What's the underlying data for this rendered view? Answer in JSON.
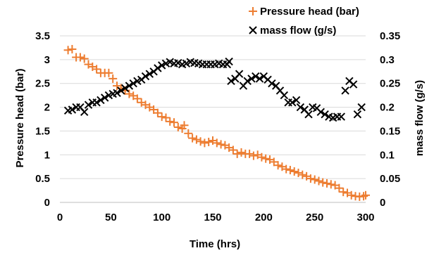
{
  "chart_data": {
    "type": "scatter",
    "xlabel": "Time (hrs)",
    "ylabel_left": "Pressure head (bar)",
    "ylabel_right": "mass flow (g/s)",
    "xlim": [
      0,
      300
    ],
    "ylim_left": [
      0,
      3.5
    ],
    "ylim_right": [
      0,
      0.35
    ],
    "x_ticks": [
      "0",
      "50",
      "100",
      "150",
      "200",
      "250",
      "300"
    ],
    "y_left_ticks": [
      "0",
      "0.5",
      "1",
      "1.5",
      "2",
      "2.5",
      "3",
      "3.5"
    ],
    "y_right_ticks": [
      "0",
      "0.05",
      "0.1",
      "0.15",
      "0.2",
      "0.25",
      "0.3",
      "0.35"
    ],
    "grid": true,
    "legend_position": "top-right",
    "series": [
      {
        "name": "Pressure head (bar)",
        "marker": "+",
        "color": "#ED7D31",
        "axis": "left",
        "points": [
          [
            8,
            3.2
          ],
          [
            12,
            3.22
          ],
          [
            16,
            3.05
          ],
          [
            20,
            3.05
          ],
          [
            24,
            3.02
          ],
          [
            28,
            2.9
          ],
          [
            32,
            2.85
          ],
          [
            36,
            2.8
          ],
          [
            40,
            2.72
          ],
          [
            44,
            2.72
          ],
          [
            48,
            2.72
          ],
          [
            52,
            2.6
          ],
          [
            56,
            2.45
          ],
          [
            60,
            2.4
          ],
          [
            64,
            2.35
          ],
          [
            68,
            2.28
          ],
          [
            72,
            2.24
          ],
          [
            76,
            2.18
          ],
          [
            80,
            2.1
          ],
          [
            84,
            2.05
          ],
          [
            88,
            2.0
          ],
          [
            92,
            1.95
          ],
          [
            96,
            1.88
          ],
          [
            100,
            1.8
          ],
          [
            104,
            1.78
          ],
          [
            108,
            1.7
          ],
          [
            112,
            1.68
          ],
          [
            116,
            1.58
          ],
          [
            120,
            1.55
          ],
          [
            122,
            1.62
          ],
          [
            126,
            1.45
          ],
          [
            130,
            1.35
          ],
          [
            134,
            1.32
          ],
          [
            138,
            1.28
          ],
          [
            142,
            1.25
          ],
          [
            146,
            1.27
          ],
          [
            150,
            1.3
          ],
          [
            154,
            1.25
          ],
          [
            158,
            1.22
          ],
          [
            162,
            1.2
          ],
          [
            166,
            1.15
          ],
          [
            170,
            1.1
          ],
          [
            174,
            1.02
          ],
          [
            178,
            1.05
          ],
          [
            182,
            1.02
          ],
          [
            186,
            1.02
          ],
          [
            190,
            0.98
          ],
          [
            194,
            1.0
          ],
          [
            198,
            0.95
          ],
          [
            202,
            0.92
          ],
          [
            206,
            0.9
          ],
          [
            210,
            0.85
          ],
          [
            214,
            0.78
          ],
          [
            218,
            0.75
          ],
          [
            222,
            0.7
          ],
          [
            226,
            0.68
          ],
          [
            230,
            0.65
          ],
          [
            234,
            0.62
          ],
          [
            238,
            0.58
          ],
          [
            242,
            0.55
          ],
          [
            246,
            0.5
          ],
          [
            250,
            0.48
          ],
          [
            254,
            0.45
          ],
          [
            258,
            0.42
          ],
          [
            262,
            0.4
          ],
          [
            266,
            0.38
          ],
          [
            270,
            0.36
          ],
          [
            274,
            0.3
          ],
          [
            278,
            0.22
          ],
          [
            282,
            0.2
          ],
          [
            286,
            0.15
          ],
          [
            290,
            0.13
          ],
          [
            294,
            0.12
          ],
          [
            298,
            0.13
          ],
          [
            300,
            0.15
          ]
        ]
      },
      {
        "name": "mass flow (g/s)",
        "marker": "x",
        "color": "#000000",
        "axis": "right",
        "points": [
          [
            8,
            0.193
          ],
          [
            12,
            0.195
          ],
          [
            16,
            0.2
          ],
          [
            20,
            0.2
          ],
          [
            24,
            0.19
          ],
          [
            28,
            0.205
          ],
          [
            32,
            0.21
          ],
          [
            36,
            0.21
          ],
          [
            40,
            0.215
          ],
          [
            44,
            0.22
          ],
          [
            48,
            0.225
          ],
          [
            52,
            0.228
          ],
          [
            56,
            0.23
          ],
          [
            60,
            0.235
          ],
          [
            64,
            0.24
          ],
          [
            68,
            0.245
          ],
          [
            72,
            0.25
          ],
          [
            76,
            0.255
          ],
          [
            80,
            0.258
          ],
          [
            84,
            0.265
          ],
          [
            88,
            0.27
          ],
          [
            92,
            0.275
          ],
          [
            96,
            0.282
          ],
          [
            100,
            0.288
          ],
          [
            104,
            0.292
          ],
          [
            108,
            0.295
          ],
          [
            112,
            0.292
          ],
          [
            116,
            0.293
          ],
          [
            120,
            0.29
          ],
          [
            124,
            0.292
          ],
          [
            128,
            0.295
          ],
          [
            132,
            0.293
          ],
          [
            136,
            0.292
          ],
          [
            140,
            0.29
          ],
          [
            144,
            0.29
          ],
          [
            148,
            0.29
          ],
          [
            152,
            0.29
          ],
          [
            156,
            0.292
          ],
          [
            160,
            0.29
          ],
          [
            164,
            0.29
          ],
          [
            166,
            0.296
          ],
          [
            168,
            0.255
          ],
          [
            172,
            0.26
          ],
          [
            176,
            0.27
          ],
          [
            180,
            0.245
          ],
          [
            184,
            0.255
          ],
          [
            188,
            0.26
          ],
          [
            192,
            0.265
          ],
          [
            196,
            0.26
          ],
          [
            200,
            0.265
          ],
          [
            204,
            0.258
          ],
          [
            208,
            0.25
          ],
          [
            212,
            0.245
          ],
          [
            216,
            0.235
          ],
          [
            220,
            0.225
          ],
          [
            224,
            0.21
          ],
          [
            228,
            0.21
          ],
          [
            232,
            0.215
          ],
          [
            236,
            0.2
          ],
          [
            240,
            0.195
          ],
          [
            244,
            0.185
          ],
          [
            248,
            0.2
          ],
          [
            252,
            0.198
          ],
          [
            256,
            0.19
          ],
          [
            260,
            0.185
          ],
          [
            264,
            0.18
          ],
          [
            268,
            0.178
          ],
          [
            272,
            0.18
          ],
          [
            276,
            0.18
          ],
          [
            280,
            0.235
          ],
          [
            284,
            0.255
          ],
          [
            288,
            0.248
          ],
          [
            292,
            0.185
          ],
          [
            296,
            0.2
          ]
        ]
      }
    ]
  }
}
